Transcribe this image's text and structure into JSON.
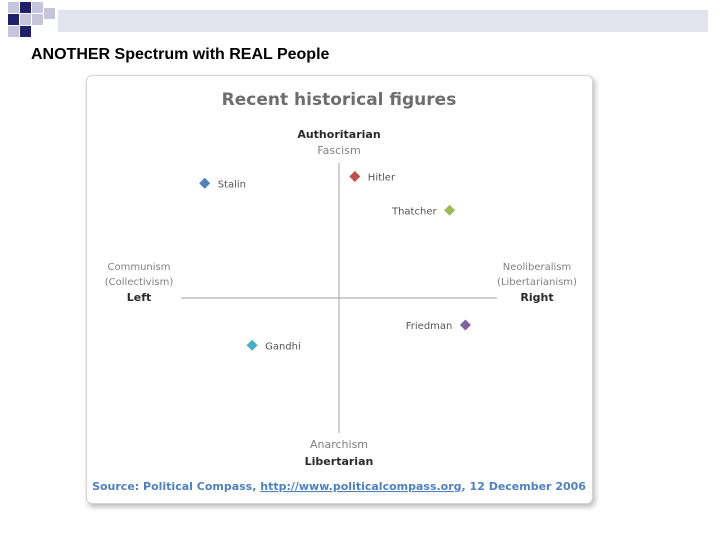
{
  "slide": {
    "title": "ANOTHER Spectrum with REAL People"
  },
  "chart_data": {
    "type": "scatter",
    "title": "Recent historical figures",
    "axes": {
      "top": {
        "primary": "Authoritarian",
        "secondary": "Fascism"
      },
      "bottom": {
        "primary": "Libertarian",
        "secondary": "Anarchism"
      },
      "left": {
        "primary": "Left",
        "secondary": [
          "Communism",
          "(Collectivism)"
        ]
      },
      "right": {
        "primary": "Right",
        "secondary": [
          "Neoliberalism",
          "(Libertarianism)"
        ]
      }
    },
    "xlim": [
      -10,
      10
    ],
    "ylim": [
      -10,
      10
    ],
    "grid": false,
    "points": [
      {
        "name": "Stalin",
        "x": -8.5,
        "y": 8.5,
        "color": "#4f81bd",
        "label_side": "right"
      },
      {
        "name": "Hitler",
        "x": 1.0,
        "y": 9.0,
        "color": "#c0504d",
        "label_side": "right"
      },
      {
        "name": "Thatcher",
        "x": 7.0,
        "y": 6.5,
        "color": "#9bbb59",
        "label_side": "left"
      },
      {
        "name": "Friedman",
        "x": 8.0,
        "y": -2.0,
        "color": "#8064a2",
        "label_side": "left"
      },
      {
        "name": "Gandhi",
        "x": -5.5,
        "y": -3.5,
        "color": "#4bacc6",
        "label_side": "right"
      }
    ],
    "source": {
      "prefix": "Source: Political Compass, ",
      "url": "http://www.politicalcompass.org",
      "suffix": ", 12 December 2006"
    }
  },
  "colors": {
    "title_text": "#6d6d6d",
    "axis_label_primary": "#2a2a2a",
    "axis_label_secondary": "#808080",
    "axis_line": "#b0b0b0",
    "source_text": "#4f81bd",
    "deco_dark": "#1f1f6b",
    "deco_light": "#c5c5dc"
  }
}
